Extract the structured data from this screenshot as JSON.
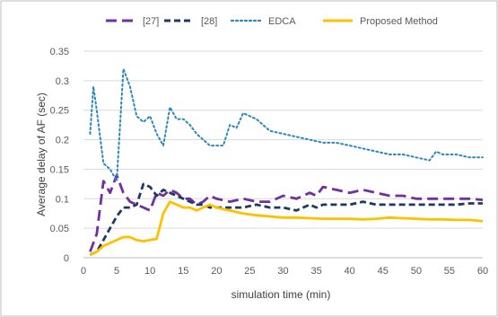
{
  "chart_data": {
    "type": "line",
    "title": "",
    "xlabel": "simulation time (min)",
    "ylabel": "Average delay of  AF (sec)",
    "xlim": [
      0,
      60
    ],
    "ylim": [
      0,
      0.35
    ],
    "xticks": [
      "0",
      "5",
      "10",
      "15",
      "20",
      "25",
      "30",
      "35",
      "40",
      "45",
      "50",
      "55",
      "60"
    ],
    "yticks": [
      "0",
      "0.05",
      "0.1",
      "0.15",
      "0.2",
      "0.25",
      "0.3",
      "0.35"
    ],
    "grid": "horizontal",
    "legend_position": "top",
    "series": [
      {
        "name": "[27]",
        "color": "#7030a0",
        "style": "long-dash",
        "x": [
          1,
          2,
          3,
          4,
          5,
          6,
          7,
          8,
          9,
          10,
          11,
          12,
          13,
          14,
          15,
          16,
          17,
          18,
          19,
          20,
          22,
          24,
          26,
          28,
          30,
          32,
          34,
          35,
          36,
          38,
          40,
          42,
          44,
          46,
          48,
          50,
          52,
          54,
          56,
          58,
          60
        ],
        "y": [
          0.01,
          0.04,
          0.13,
          0.11,
          0.14,
          0.11,
          0.095,
          0.09,
          0.085,
          0.08,
          0.11,
          0.105,
          0.115,
          0.11,
          0.1,
          0.1,
          0.09,
          0.095,
          0.105,
          0.1,
          0.095,
          0.1,
          0.095,
          0.095,
          0.105,
          0.1,
          0.11,
          0.105,
          0.12,
          0.115,
          0.11,
          0.115,
          0.11,
          0.105,
          0.105,
          0.1,
          0.1,
          0.1,
          0.1,
          0.1,
          0.098
        ]
      },
      {
        "name": "[28]",
        "color": "#1f3864",
        "style": "dash",
        "x": [
          1,
          2,
          3,
          4,
          5,
          6,
          7,
          8,
          9,
          10,
          11,
          12,
          13,
          14,
          15,
          16,
          17,
          18,
          19,
          20,
          22,
          24,
          26,
          28,
          30,
          32,
          34,
          35,
          36,
          38,
          40,
          42,
          44,
          46,
          48,
          50,
          52,
          54,
          56,
          58,
          60
        ],
        "y": [
          0.005,
          0.01,
          0.03,
          0.05,
          0.07,
          0.085,
          0.085,
          0.09,
          0.125,
          0.12,
          0.105,
          0.115,
          0.11,
          0.105,
          0.1,
          0.095,
          0.09,
          0.09,
          0.085,
          0.085,
          0.085,
          0.085,
          0.09,
          0.085,
          0.085,
          0.08,
          0.09,
          0.085,
          0.09,
          0.09,
          0.09,
          0.095,
          0.09,
          0.09,
          0.09,
          0.09,
          0.09,
          0.09,
          0.09,
          0.092,
          0.092
        ]
      },
      {
        "name": "EDCA",
        "color": "#2e86c1",
        "style": "dotted",
        "x": [
          1,
          1.5,
          2,
          3,
          4,
          5,
          6,
          7,
          8,
          9,
          10,
          11,
          12,
          13,
          14,
          15,
          16,
          17,
          18,
          19,
          20,
          21,
          22,
          23,
          24,
          25,
          26,
          27,
          28,
          30,
          32,
          34,
          36,
          38,
          40,
          42,
          44,
          46,
          48,
          50,
          52,
          53,
          54,
          56,
          58,
          60
        ],
        "y": [
          0.21,
          0.29,
          0.25,
          0.16,
          0.15,
          0.13,
          0.32,
          0.29,
          0.24,
          0.23,
          0.24,
          0.21,
          0.19,
          0.255,
          0.235,
          0.235,
          0.225,
          0.21,
          0.2,
          0.19,
          0.19,
          0.19,
          0.225,
          0.22,
          0.245,
          0.24,
          0.235,
          0.225,
          0.215,
          0.21,
          0.205,
          0.2,
          0.195,
          0.195,
          0.19,
          0.185,
          0.18,
          0.175,
          0.175,
          0.17,
          0.165,
          0.18,
          0.175,
          0.175,
          0.17,
          0.17
        ]
      },
      {
        "name": "Proposed Method",
        "color": "#ffc000",
        "style": "solid",
        "x": [
          1,
          2,
          3,
          4,
          5,
          6,
          7,
          8,
          9,
          10,
          11,
          12,
          13,
          14,
          15,
          16,
          17,
          18,
          19,
          20,
          22,
          24,
          26,
          28,
          30,
          32,
          34,
          36,
          38,
          40,
          42,
          44,
          46,
          48,
          50,
          52,
          54,
          56,
          58,
          60
        ],
        "y": [
          0.005,
          0.01,
          0.02,
          0.025,
          0.03,
          0.035,
          0.035,
          0.03,
          0.028,
          0.03,
          0.032,
          0.075,
          0.095,
          0.09,
          0.085,
          0.085,
          0.08,
          0.085,
          0.09,
          0.085,
          0.08,
          0.075,
          0.072,
          0.07,
          0.068,
          0.068,
          0.067,
          0.066,
          0.066,
          0.066,
          0.065,
          0.066,
          0.068,
          0.067,
          0.066,
          0.065,
          0.065,
          0.064,
          0.064,
          0.062
        ]
      }
    ]
  }
}
